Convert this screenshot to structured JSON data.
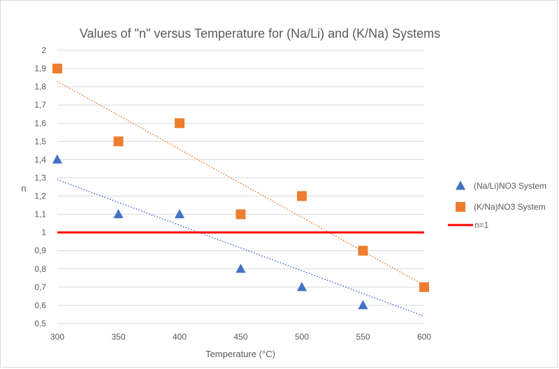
{
  "chart_data": {
    "type": "scatter",
    "title": "Values of \"n\" versus Temperature for (Na/Li) and (K/Na) Systems",
    "xlabel": "Temperature (°C)",
    "ylabel": "n",
    "xlim": [
      300,
      600
    ],
    "ylim": [
      0.5,
      2
    ],
    "x_ticks": [
      300,
      350,
      400,
      450,
      500,
      550,
      600
    ],
    "x_tick_labels": [
      "300",
      "350",
      "400",
      "450",
      "500",
      "550",
      "600"
    ],
    "y_ticks": [
      0.5,
      0.6,
      0.7,
      0.8,
      0.9,
      1.0,
      1.1,
      1.2,
      1.3,
      1.4,
      1.5,
      1.6,
      1.7,
      1.8,
      1.9,
      2.0
    ],
    "y_tick_labels": [
      "0,5",
      "0,6",
      "0,7",
      "0,8",
      "0,9",
      "1",
      "1,1",
      "1,2",
      "1,3",
      "1,4",
      "1,5",
      "1,6",
      "1,7",
      "1,8",
      "1,9",
      "2"
    ],
    "grid": "horizontal",
    "legend_position": "right",
    "series": [
      {
        "name": "(Na/Li)NO3 System",
        "marker": "triangle",
        "color": "#4472c4",
        "x": [
          300,
          350,
          400,
          450,
          500,
          550
        ],
        "y": [
          1.4,
          1.1,
          1.1,
          0.8,
          0.7,
          0.6
        ],
        "trendline": {
          "style": "dotted",
          "x": [
            300,
            600
          ],
          "y": [
            1.29,
            0.54
          ]
        }
      },
      {
        "name": "(K/Na)NO3 System",
        "marker": "square",
        "color": "#ed7d31",
        "x": [
          300,
          350,
          400,
          450,
          500,
          550,
          600
        ],
        "y": [
          1.9,
          1.5,
          1.6,
          1.1,
          1.2,
          0.9,
          0.7
        ],
        "trendline": {
          "style": "dotted",
          "x": [
            300,
            600
          ],
          "y": [
            1.83,
            0.71
          ]
        }
      },
      {
        "name": "n=1",
        "marker": "line",
        "color": "#ff0000",
        "x": [
          300,
          600
        ],
        "y": [
          1.0,
          1.0
        ]
      }
    ]
  }
}
